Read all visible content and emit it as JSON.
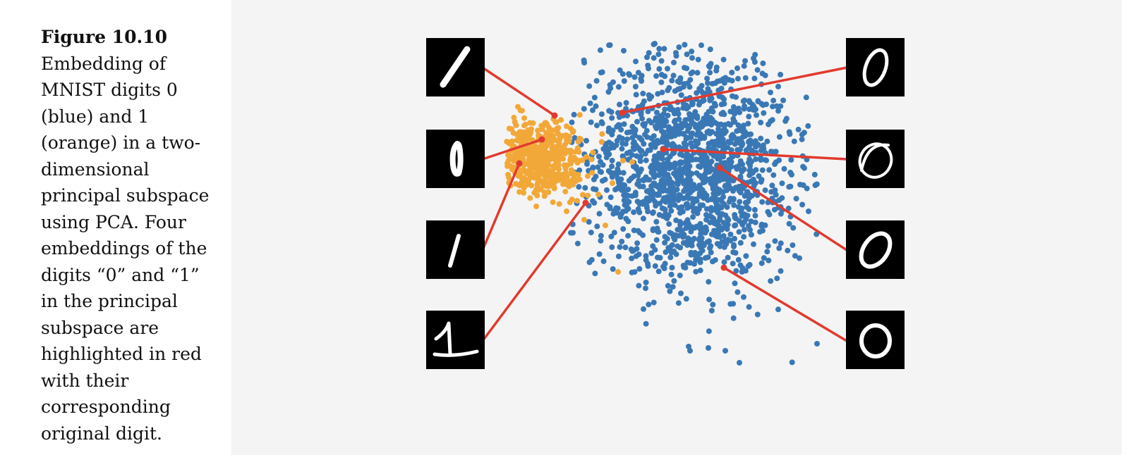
{
  "caption": {
    "label": "Figure 10.10",
    "text": "Embedding of MNIST digits 0 (blue) and 1 (orange) in a two-dimensional principal subspace using PCA. Four embeddings of the digits “0” and “1” in the principal subspace are highlighted in red with their corresponding original digit."
  },
  "colors": {
    "digit0": "#3a78b5",
    "digit1": "#f2a838",
    "highlight": "#e23a2e",
    "thumb_bg": "#000000",
    "stroke": "#ffffff",
    "panel_bg": "#f4f4f4"
  },
  "chart_data": {
    "type": "scatter",
    "title": "",
    "xlabel": "",
    "ylabel": "",
    "grid": false,
    "legend": "none",
    "series": [
      {
        "class": "0",
        "color": "blue",
        "count_approx": 6000
      },
      {
        "class": "1",
        "color": "orange",
        "count_approx": 6000
      }
    ],
    "highlights": [
      {
        "digit": "1",
        "index": 1,
        "icon": "digit-one-slanted-icon"
      },
      {
        "digit": "1",
        "index": 2,
        "icon": "digit-one-thick-icon"
      },
      {
        "digit": "1",
        "index": 3,
        "icon": "digit-one-thin-icon"
      },
      {
        "digit": "1",
        "index": 4,
        "icon": "digit-one-serif-icon"
      },
      {
        "digit": "0",
        "index": 1,
        "icon": "digit-zero-narrow-icon"
      },
      {
        "digit": "0",
        "index": 2,
        "icon": "digit-zero-scribble-icon"
      },
      {
        "digit": "0",
        "index": 3,
        "icon": "digit-zero-tilted-icon"
      },
      {
        "digit": "0",
        "index": 4,
        "icon": "digit-zero-round-icon"
      }
    ]
  }
}
